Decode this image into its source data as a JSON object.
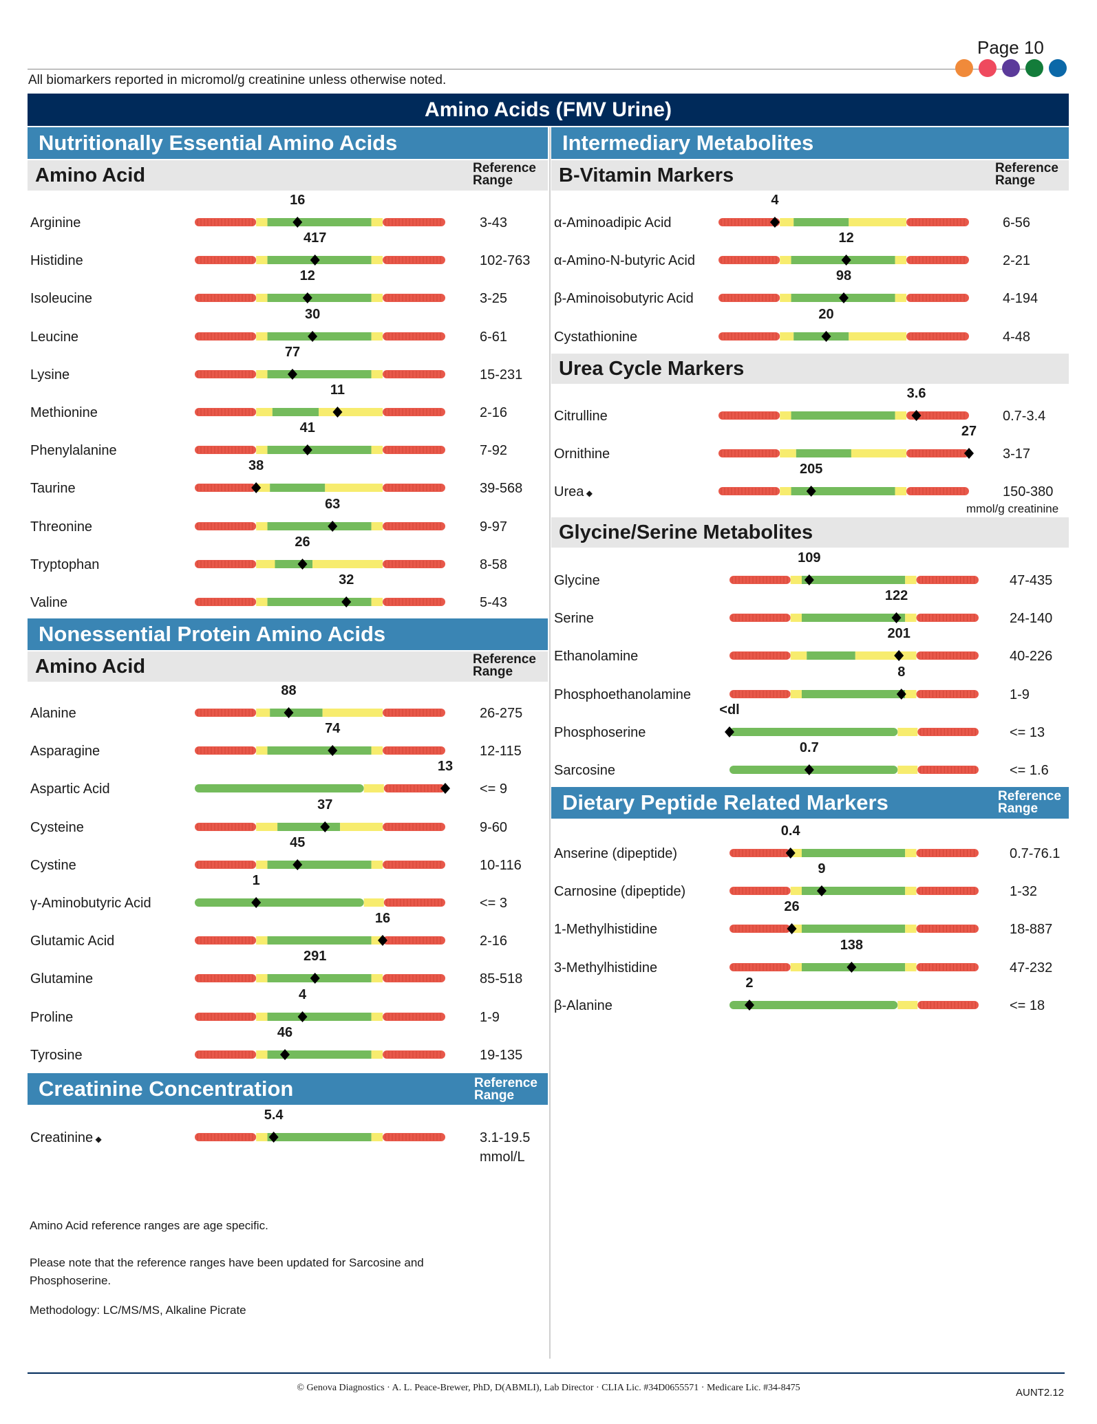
{
  "page": {
    "number_label": "Page 10",
    "units_note": "All biomarkers reported in micromol/g creatinine unless otherwise noted.",
    "title": "Amino Acids (FMV Urine)",
    "brand_dots": [
      "#f08a3a",
      "#ef4a5e",
      "#5b3a9a",
      "#137c3a",
      "#0b68a8"
    ]
  },
  "colors": {
    "red": "#e8584a",
    "yellow": "#f7ec6e",
    "green": "#74bb5c",
    "header_blue": "#3a85b4",
    "navy": "#002a5a"
  },
  "left": {
    "essential": {
      "title": "Nutritionally Essential Amino Acids",
      "col_label": "Amino Acid",
      "ref_label_1": "Reference",
      "ref_label_2": "Range",
      "rows": [
        {
          "name": "Arginine",
          "value": "16",
          "range": "3-43",
          "zones": "rygyr",
          "pos": 0.41
        },
        {
          "name": "Histidine",
          "value": "417",
          "range": "102-763",
          "zones": "rygyr",
          "pos": 0.48
        },
        {
          "name": "Isoleucine",
          "value": "12",
          "range": "3-25",
          "zones": "rygyr",
          "pos": 0.45
        },
        {
          "name": "Leucine",
          "value": "30",
          "range": "6-61",
          "zones": "rygyr",
          "pos": 0.47
        },
        {
          "name": "Lysine",
          "value": "77",
          "range": "15-231",
          "zones": "rygyr",
          "pos": 0.39
        },
        {
          "name": "Methionine",
          "value": "11",
          "range": "2-16",
          "zones": "rygyr2",
          "pos": 0.57
        },
        {
          "name": "Phenylalanine",
          "value": "41",
          "range": "7-92",
          "zones": "rygyr",
          "pos": 0.45
        },
        {
          "name": "Taurine",
          "value": "38",
          "range": "39-568",
          "zones": "rygyr3",
          "pos": 0.245
        },
        {
          "name": "Threonine",
          "value": "63",
          "range": "9-97",
          "zones": "rygyr",
          "pos": 0.55
        },
        {
          "name": "Tryptophan",
          "value": "26",
          "range": "8-58",
          "zones": "rygyr4",
          "pos": 0.43
        },
        {
          "name": "Valine",
          "value": "32",
          "range": "5-43",
          "zones": "rygyr",
          "pos": 0.605
        }
      ]
    },
    "nonessential": {
      "title": "Nonessential Protein Amino Acids",
      "col_label": "Amino Acid",
      "ref_label_1": "Reference",
      "ref_label_2": "Range",
      "rows": [
        {
          "name": "Alanine",
          "value": "88",
          "range": "26-275",
          "zones": "rygyr5",
          "pos": 0.375
        },
        {
          "name": "Asparagine",
          "value": "74",
          "range": "12-115",
          "zones": "rygyr",
          "pos": 0.55
        },
        {
          "name": "Aspartic Acid",
          "value": "13",
          "range": "<= 9",
          "zones": "gyr",
          "pos": 1.0
        },
        {
          "name": "Cysteine",
          "value": "37",
          "range": "9-60",
          "zones": "rygyr6",
          "pos": 0.52
        },
        {
          "name": "Cystine",
          "value": "45",
          "range": "10-116",
          "zones": "rygyr",
          "pos": 0.41
        },
        {
          "name": "γ-Aminobutyric Acid",
          "value": "1",
          "range": "<= 3",
          "zones": "gyr",
          "pos": 0.245
        },
        {
          "name": "Glutamic Acid",
          "value": "16",
          "range": "2-16",
          "zones": "rygyr",
          "pos": 0.75
        },
        {
          "name": "Glutamine",
          "value": "291",
          "range": "85-518",
          "zones": "rygyr",
          "pos": 0.48
        },
        {
          "name": "Proline",
          "value": "4",
          "range": "1-9",
          "zones": "rygyr",
          "pos": 0.43
        },
        {
          "name": "Tyrosine",
          "value": "46",
          "range": "19-135",
          "zones": "rygyr",
          "pos": 0.36
        }
      ]
    },
    "creatinine": {
      "title": "Creatinine Concentration",
      "ref_label_1": "Reference",
      "ref_label_2": "Range",
      "rows": [
        {
          "name": "Creatinine",
          "marker": "◆",
          "value": "5.4",
          "range": "3.1-19.5",
          "range2": "mmol/L",
          "zones": "rygyr",
          "pos": 0.315
        }
      ]
    },
    "footnotes": [
      "Amino Acid reference ranges are age specific.",
      "Please note that the reference ranges have been updated for Sarcosine and Phosphoserine.",
      "Methodology: LC/MS/MS, Alkaline Picrate"
    ]
  },
  "right": {
    "intermediary_title": "Intermediary Metabolites",
    "bvit": {
      "title": "B-Vitamin Markers",
      "ref_label_1": "Reference",
      "ref_label_2": "Range",
      "rows": [
        {
          "name": "α-Aminoadipic Acid",
          "value": "4",
          "range": "6-56",
          "zones": "rygyr7",
          "pos": 0.225
        },
        {
          "name": "α-Amino-N-butyric Acid",
          "value": "12",
          "range": "2-21",
          "zones": "rygyr",
          "pos": 0.51
        },
        {
          "name": "β-Aminoisobutyric Acid",
          "value": "98",
          "range": "4-194",
          "zones": "rygyr",
          "pos": 0.5
        },
        {
          "name": "Cystathionine",
          "value": "20",
          "range": "4-48",
          "zones": "rygyr7",
          "pos": 0.43
        }
      ]
    },
    "urea": {
      "title": "Urea Cycle Markers",
      "rows": [
        {
          "name": "Citrulline",
          "value": "3.6",
          "range": "0.7-3.4",
          "zones": "rygyr",
          "pos": 0.79
        },
        {
          "name": "Ornithine",
          "value": "27",
          "range": "3-17",
          "zones": "rygyr8",
          "pos": 1.0
        },
        {
          "name": "Urea",
          "marker": "◆",
          "value": "205",
          "range": "150-380",
          "zones": "rygyr",
          "pos": 0.37
        }
      ],
      "unit_note": "mmol/g creatinine"
    },
    "glycine": {
      "title": "Glycine/Serine Metabolites",
      "rows": [
        {
          "name": "Glycine",
          "value": "109",
          "range": "47-435",
          "zones": "rygyr9",
          "pos": 0.32
        },
        {
          "name": "Serine",
          "value": "122",
          "range": "24-140",
          "zones": "rygyr9",
          "pos": 0.67
        },
        {
          "name": "Ethanolamine",
          "value": "201",
          "range": "40-226",
          "zones": "rygyr10",
          "pos": 0.68
        },
        {
          "name": "Phosphoethanolamine",
          "value": "8",
          "range": "1-9",
          "zones": "rygyr9",
          "pos": 0.69
        },
        {
          "name": "Phosphoserine",
          "value": "<dl",
          "range": "<= 13",
          "zones": "gyr2",
          "pos": 0.0
        },
        {
          "name": "Sarcosine",
          "value": "0.7",
          "range": "<= 1.6",
          "zones": "gyr2",
          "pos": 0.32
        }
      ]
    },
    "dietary": {
      "title": "Dietary Peptide Related Markers",
      "ref_label_1": "Reference",
      "ref_label_2": "Range",
      "rows": [
        {
          "name": "Anserine (dipeptide)",
          "value": "0.4",
          "range": "0.7-76.1",
          "zones": "rygyr9",
          "pos": 0.245
        },
        {
          "name": "Carnosine (dipeptide)",
          "value": "9",
          "range": "1-32",
          "zones": "rygyr9",
          "pos": 0.37
        },
        {
          "name": "1-Methylhistidine",
          "value": "26",
          "range": "18-887",
          "zones": "rygyr9",
          "pos": 0.25
        },
        {
          "name": "3-Methylhistidine",
          "value": "138",
          "range": "47-232",
          "zones": "rygyr9",
          "pos": 0.49
        },
        {
          "name": "β-Alanine",
          "value": "2",
          "range": "<= 18",
          "zones": "gyr2",
          "pos": 0.08
        }
      ]
    }
  },
  "footer": {
    "copyright": "© Genova Diagnostics · A. L. Peace-Brewer, PhD, D(ABMLI), Lab Director · CLIA Lic. #34D0655571 · Medicare Lic. #34-8475",
    "code": "AUNT2.12"
  }
}
